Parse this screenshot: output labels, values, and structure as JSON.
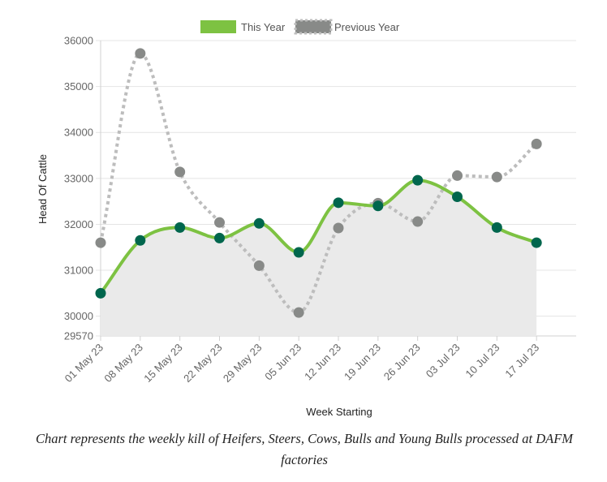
{
  "chart_data": {
    "type": "line",
    "categories": [
      "01 May 23",
      "08 May 23",
      "15 May 23",
      "22 May 23",
      "29 May 23",
      "05 Jun 23",
      "12 Jun 23",
      "19 Jun 23",
      "26 Jun 23",
      "03 Jul 23",
      "10 Jul 23",
      "17 Jul 23"
    ],
    "series": [
      {
        "name": "This Year",
        "color": "#7dc242",
        "marker_color": "#00664d",
        "fill": "#eaeaea",
        "values": [
          30500,
          31650,
          31930,
          31700,
          32020,
          31390,
          32470,
          32400,
          32960,
          32600,
          31930,
          31600
        ]
      },
      {
        "name": "Previous Year",
        "color": "#bdbdbd",
        "marker_color": "#888a88",
        "dashed": true,
        "values": [
          31600,
          35720,
          33140,
          32040,
          31100,
          30080,
          31920,
          32460,
          32060,
          33060,
          33030,
          33750
        ]
      }
    ],
    "yticks": [
      29570,
      30000,
      31000,
      32000,
      33000,
      34000,
      35000,
      36000
    ],
    "ylim": [
      29570,
      36000
    ],
    "xlabel": "Week Starting",
    "ylabel": "Head Of Cattle",
    "legend_position": "top"
  },
  "caption": "Chart represents the weekly kill of Heifers, Steers, Cows, Bulls and Young Bulls processed at DAFM factories"
}
